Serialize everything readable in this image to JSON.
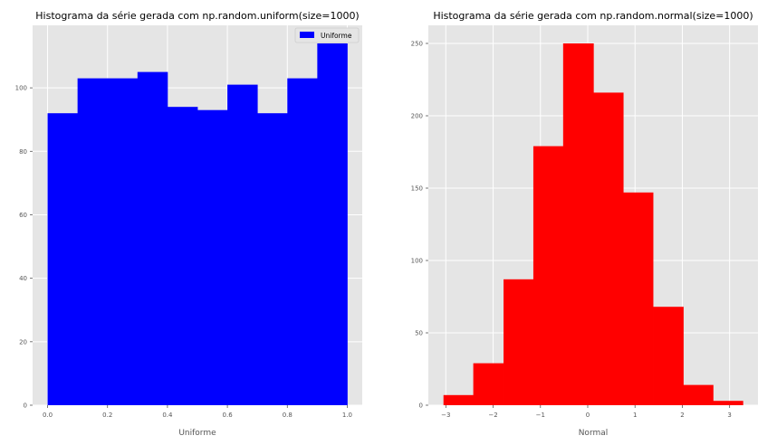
{
  "chart_data": [
    {
      "type": "bar",
      "title": "Histograma da série gerada com np.random.uniform(size=1000)",
      "xlabel": "Uniforme",
      "ylabel": "",
      "color": "#0000ff",
      "bin_edges": [
        0.0,
        0.1,
        0.2,
        0.3,
        0.4,
        0.5,
        0.6,
        0.7,
        0.8,
        0.9,
        1.0
      ],
      "values": [
        92,
        103,
        103,
        105,
        94,
        93,
        101,
        92,
        103,
        114
      ],
      "xlim": [
        -0.05,
        1.05
      ],
      "ylim": [
        0,
        119.7
      ],
      "xticks": [
        0.0,
        0.2,
        0.4,
        0.6,
        0.8,
        1.0
      ],
      "xtick_labels": [
        "0.0",
        "0.2",
        "0.4",
        "0.6",
        "0.8",
        "1.0"
      ],
      "yticks": [
        0,
        20,
        40,
        60,
        80,
        100
      ],
      "ytick_labels": [
        "0",
        "20",
        "40",
        "60",
        "80",
        "100"
      ],
      "legend": {
        "entries": [
          "Uniforme"
        ],
        "placement": "upper right"
      },
      "grid": true
    },
    {
      "type": "bar",
      "title": "Histograma da série gerada com np.random.normal(size=1000)",
      "xlabel": "Normal",
      "ylabel": "",
      "color": "#ff0000",
      "bin_edges": [
        -3.05,
        -2.42,
        -1.78,
        -1.15,
        -0.52,
        0.12,
        0.75,
        1.38,
        2.02,
        2.65,
        3.28
      ],
      "values": [
        7,
        29,
        87,
        179,
        250,
        216,
        147,
        68,
        14,
        3
      ],
      "xlim": [
        -3.37,
        3.6
      ],
      "ylim": [
        0,
        262.5
      ],
      "xticks": [
        -3,
        -2,
        -1,
        0,
        1,
        2,
        3
      ],
      "xtick_labels": [
        "−3",
        "−2",
        "−1",
        "0",
        "1",
        "2",
        "3"
      ],
      "yticks": [
        0,
        50,
        100,
        150,
        200,
        250
      ],
      "ytick_labels": [
        "0",
        "50",
        "100",
        "150",
        "200",
        "250"
      ],
      "grid": true
    }
  ]
}
